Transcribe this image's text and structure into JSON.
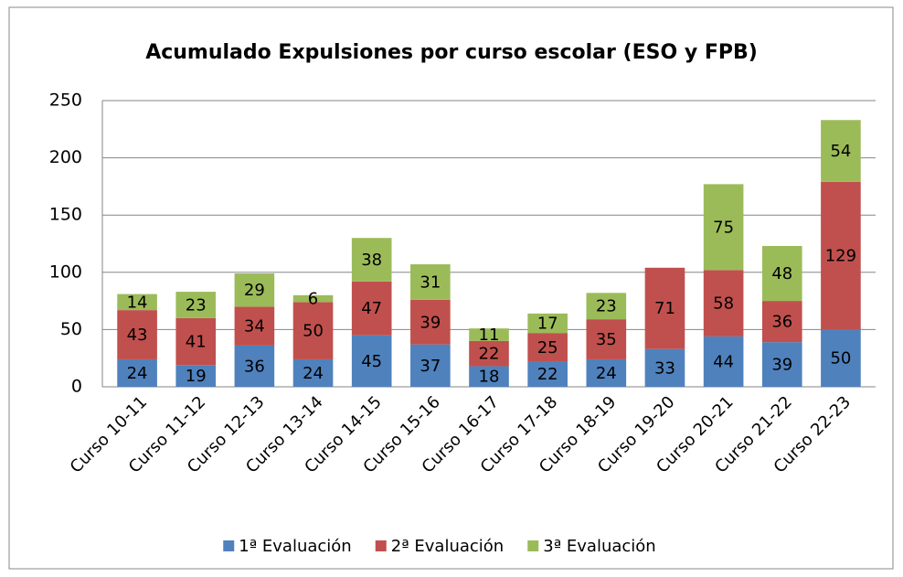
{
  "chart_data": {
    "type": "stacked_bar",
    "title": "Acumulado Expulsiones por curso escolar (ESO y FPB)",
    "categories": [
      "Curso 10-11",
      "Curso 11-12",
      "Curso 12-13",
      "Curso 13-14",
      "Curso 14-15",
      "Curso 15-16",
      "Curso 16-17",
      "Curso 17-18",
      "Curso 18-19",
      "Curso 19-20",
      "Curso 20-21",
      "Curso 21-22",
      "Curso 22-23"
    ],
    "series": [
      {
        "name": "1ª Evaluación",
        "color": "#4f81bd",
        "values": [
          24,
          19,
          36,
          24,
          45,
          37,
          18,
          22,
          24,
          33,
          44,
          39,
          50
        ]
      },
      {
        "name": "2ª Evaluación",
        "color": "#c0504d",
        "values": [
          43,
          41,
          34,
          50,
          47,
          39,
          22,
          25,
          35,
          71,
          58,
          36,
          129
        ]
      },
      {
        "name": "3ª Evaluación",
        "color": "#9bbb59",
        "values": [
          14,
          23,
          29,
          6,
          38,
          31,
          11,
          17,
          23,
          null,
          75,
          48,
          54
        ]
      }
    ],
    "ylim": [
      0,
      250
    ],
    "yticks": [
      0,
      50,
      100,
      150,
      200,
      250
    ],
    "grid": true,
    "legend": "bottom"
  }
}
